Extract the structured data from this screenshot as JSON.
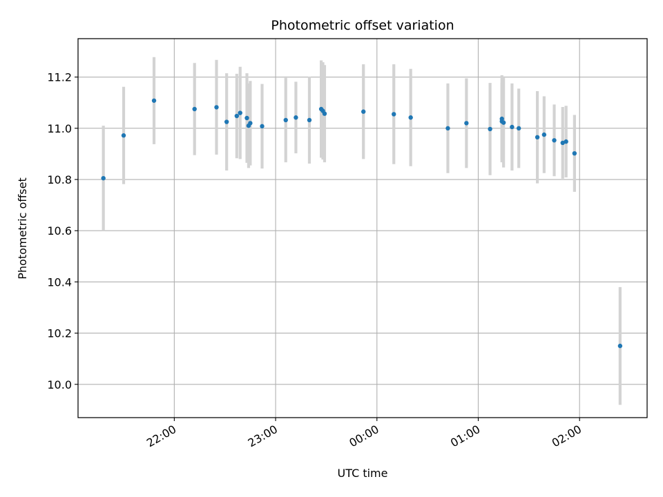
{
  "chart_data": {
    "type": "scatter",
    "title": "Photometric offset variation",
    "xlabel": "UTC time",
    "ylabel": "Photometric offset",
    "grid": true,
    "x_format": "HH:MM",
    "x_tick_labels": [
      "22:00",
      "23:00",
      "00:00",
      "01:00",
      "02:00"
    ],
    "x_ticks": [
      "2000-01-01T22:00",
      "2000-01-01T23:00",
      "2000-01-02T00:00",
      "2000-01-02T01:00",
      "2000-01-02T02:00"
    ],
    "xlim": [
      "2000-01-01T21:03",
      "2000-01-02T02:40"
    ],
    "y_tick_labels": [
      "10.0",
      "10.2",
      "10.4",
      "10.6",
      "10.8",
      "11.0",
      "11.2"
    ],
    "y_ticks": [
      10.0,
      10.2,
      10.4,
      10.6,
      10.8,
      11.0,
      11.2
    ],
    "ylim": [
      9.87,
      11.35
    ],
    "colors": {
      "point": "#1f77b4",
      "errorbar": "#d3d3d3",
      "grid": "#b0b0b0"
    },
    "series": [
      {
        "points": [
          {
            "x": "2000-01-01T21:18",
            "y": 10.805,
            "yerr": 0.205
          },
          {
            "x": "2000-01-01T21:30",
            "y": 10.972,
            "yerr": 0.19
          },
          {
            "x": "2000-01-01T21:48",
            "y": 11.108,
            "yerr": 0.17
          },
          {
            "x": "2000-01-01T22:12",
            "y": 11.075,
            "yerr": 0.18
          },
          {
            "x": "2000-01-01T22:25",
            "y": 11.082,
            "yerr": 0.185
          },
          {
            "x": "2000-01-01T22:31",
            "y": 11.025,
            "yerr": 0.19
          },
          {
            "x": "2000-01-01T22:37",
            "y": 11.048,
            "yerr": 0.165
          },
          {
            "x": "2000-01-01T22:39",
            "y": 11.06,
            "yerr": 0.18
          },
          {
            "x": "2000-01-01T22:43",
            "y": 11.04,
            "yerr": 0.175
          },
          {
            "x": "2000-01-01T22:44",
            "y": 11.01,
            "yerr": 0.165
          },
          {
            "x": "2000-01-01T22:45",
            "y": 11.02,
            "yerr": 0.165
          },
          {
            "x": "2000-01-01T22:52",
            "y": 11.008,
            "yerr": 0.165
          },
          {
            "x": "2000-01-01T23:06",
            "y": 11.032,
            "yerr": 0.165
          },
          {
            "x": "2000-01-01T23:12",
            "y": 11.042,
            "yerr": 0.14
          },
          {
            "x": "2000-01-01T23:20",
            "y": 11.032,
            "yerr": 0.17
          },
          {
            "x": "2000-01-01T23:27",
            "y": 11.075,
            "yerr": 0.19
          },
          {
            "x": "2000-01-01T23:28",
            "y": 11.068,
            "yerr": 0.19
          },
          {
            "x": "2000-01-01T23:29",
            "y": 11.057,
            "yerr": 0.19
          },
          {
            "x": "2000-01-01T23:52",
            "y": 11.065,
            "yerr": 0.185
          },
          {
            "x": "2000-01-02T00:10",
            "y": 11.055,
            "yerr": 0.195
          },
          {
            "x": "2000-01-02T00:20",
            "y": 11.042,
            "yerr": 0.19
          },
          {
            "x": "2000-01-02T00:42",
            "y": 11.0,
            "yerr": 0.175
          },
          {
            "x": "2000-01-02T00:53",
            "y": 11.02,
            "yerr": 0.175
          },
          {
            "x": "2000-01-02T01:07",
            "y": 10.997,
            "yerr": 0.18
          },
          {
            "x": "2000-01-02T01:14",
            "y": 11.027,
            "yerr": 0.15
          },
          {
            "x": "2000-01-02T01:14",
            "y": 11.037,
            "yerr": 0.17
          },
          {
            "x": "2000-01-02T01:15",
            "y": 11.022,
            "yerr": 0.175
          },
          {
            "x": "2000-01-02T01:20",
            "y": 11.005,
            "yerr": 0.17
          },
          {
            "x": "2000-01-02T01:24",
            "y": 11.0,
            "yerr": 0.155
          },
          {
            "x": "2000-01-02T01:35",
            "y": 10.965,
            "yerr": 0.18
          },
          {
            "x": "2000-01-02T01:39",
            "y": 10.975,
            "yerr": 0.15
          },
          {
            "x": "2000-01-02T01:45",
            "y": 10.953,
            "yerr": 0.14
          },
          {
            "x": "2000-01-02T01:50",
            "y": 10.943,
            "yerr": 0.14
          },
          {
            "x": "2000-01-02T01:52",
            "y": 10.948,
            "yerr": 0.14
          },
          {
            "x": "2000-01-02T01:57",
            "y": 10.902,
            "yerr": 0.15
          },
          {
            "x": "2000-01-02T02:24",
            "y": 10.15,
            "yerr": 0.23
          }
        ]
      }
    ]
  }
}
